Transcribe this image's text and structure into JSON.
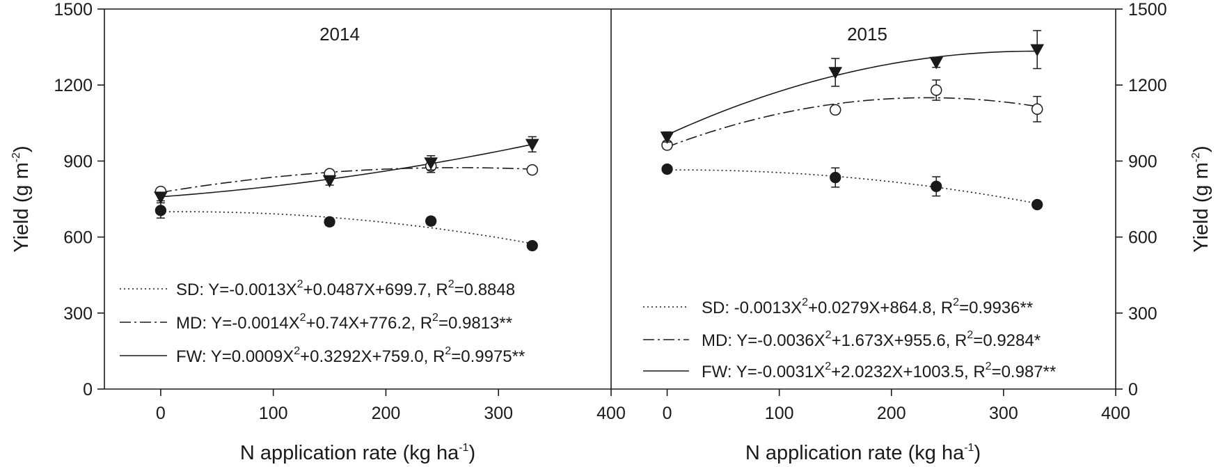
{
  "chart_data": {
    "type": "scatter",
    "x_axis_label": "N application rate (kg ha",
    "x_axis_label_sup": "-1",
    "x_axis_label_end": ")",
    "y_axis_label": "Yield (g m",
    "y_axis_label_sup": "-2",
    "y_axis_label_end": ")",
    "xlim": [
      -50,
      400
    ],
    "ylim": [
      0,
      1500
    ],
    "x_ticks": [
      0,
      100,
      200,
      300,
      400
    ],
    "y_ticks": [
      0,
      300,
      600,
      900,
      1200,
      1500
    ],
    "grid": false,
    "panels": [
      {
        "title": "2014",
        "series": [
          {
            "name": "SD",
            "marker": "filled-circle",
            "line_style": "dotted",
            "x": [
              0,
              150,
              240,
              330
            ],
            "y": [
              705,
              660,
              663,
              566
            ],
            "err": [
              30,
              15,
              15,
              8
            ],
            "equation": "Y=-0.0013X",
            "equation_rest": "+0.0487X+699.7, R",
            "r2_value": "=0.8848",
            "coeffs": [
              699.7,
              0.0487,
              -0.0013
            ]
          },
          {
            "name": "MD",
            "marker": "open-circle",
            "line_style": "dash-dot",
            "x": [
              0,
              150,
              240,
              330
            ],
            "y": [
              780,
              850,
              880,
              865
            ],
            "err": [
              10,
              12,
              25,
              10
            ],
            "equation": "Y=-0.0014X",
            "equation_rest": "+0.74X+776.2, R",
            "r2_value": "=0.9813**",
            "coeffs": [
              776.2,
              0.74,
              -0.0014
            ]
          },
          {
            "name": "FW",
            "marker": "filled-triangle-down",
            "line_style": "solid",
            "x": [
              0,
              150,
              240,
              330
            ],
            "y": [
              758,
              823,
              893,
              966
            ],
            "err": [
              15,
              18,
              28,
              30
            ],
            "equation": "Y=0.0009X",
            "equation_rest": "+0.3292X+759.0, R",
            "r2_value": "=0.9975**",
            "coeffs": [
              759.0,
              0.3292,
              0.0009
            ]
          }
        ]
      },
      {
        "title": "2015",
        "series": [
          {
            "name": "SD",
            "marker": "filled-circle",
            "line_style": "dotted",
            "x": [
              0,
              150,
              240,
              330
            ],
            "y": [
              868,
              835,
              800,
              728
            ],
            "err": [
              8,
              38,
              38,
              12
            ],
            "equation": "-0.0013X",
            "equation_rest": "+0.0279X+864.8, R",
            "r2_value": "=0.9936**",
            "coeffs": [
              864.8,
              0.0279,
              -0.0013
            ]
          },
          {
            "name": "MD",
            "marker": "open-circle",
            "line_style": "dash-dot",
            "x": [
              0,
              150,
              240,
              330
            ],
            "y": [
              963,
              1102,
              1180,
              1105
            ],
            "err": [
              15,
              10,
              40,
              50
            ],
            "equation": "Y=-0.0036X",
            "equation_rest": "+1.673X+955.6, R",
            "r2_value": "=0.9284*",
            "coeffs": [
              955.6,
              1.673,
              -0.0036
            ]
          },
          {
            "name": "FW",
            "marker": "filled-triangle-down",
            "line_style": "solid",
            "x": [
              0,
              150,
              240,
              330
            ],
            "y": [
              995,
              1250,
              1290,
              1340
            ],
            "err": [
              20,
              55,
              20,
              75
            ],
            "equation": "Y=-0.0031X",
            "equation_rest": "+2.0232X+1003.5, R",
            "r2_value": "=0.987**",
            "coeffs": [
              1003.5,
              2.0232,
              -0.0031
            ]
          }
        ]
      }
    ]
  }
}
